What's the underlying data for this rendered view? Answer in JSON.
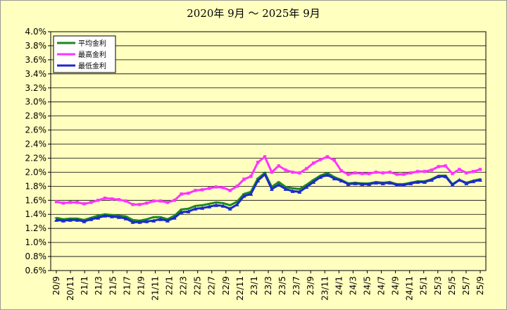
{
  "chart_data": {
    "type": "line",
    "title": "2020年 9月 ～ 2025年 9月",
    "xlabel": "",
    "ylabel": "",
    "ylim": [
      0.6,
      4.0
    ],
    "y_ticks": [
      "4.0%",
      "3.8%",
      "3.6%",
      "3.4%",
      "3.2%",
      "3.0%",
      "2.8%",
      "2.6%",
      "2.4%",
      "2.2%",
      "2.0%",
      "1.8%",
      "1.6%",
      "1.4%",
      "1.2%",
      "1.0%",
      "0.8%",
      "0.6%"
    ],
    "x_tick_labels": [
      "20/9",
      "20/11",
      "21/1",
      "21/3",
      "21/5",
      "21/7",
      "21/9",
      "21/11",
      "22/1",
      "22/3",
      "22/5",
      "22/7",
      "22/9",
      "22/11",
      "23/1",
      "23/3",
      "23/5",
      "23/7",
      "23/9",
      "23/11",
      "24/1",
      "24/3",
      "24/5",
      "24/7",
      "24/9",
      "24/11",
      "25/1",
      "25/3",
      "25/5",
      "25/7",
      "25/9"
    ],
    "grid": true,
    "legend_position": "top-left",
    "series": [
      {
        "name": "平均金利",
        "color": "#1a8a1a",
        "values": [
          1.35,
          1.33,
          1.34,
          1.34,
          1.32,
          1.35,
          1.38,
          1.4,
          1.39,
          1.38,
          1.37,
          1.32,
          1.31,
          1.33,
          1.36,
          1.36,
          1.33,
          1.38,
          1.47,
          1.48,
          1.52,
          1.53,
          1.55,
          1.57,
          1.56,
          1.53,
          1.58,
          1.69,
          1.72,
          1.91,
          1.99,
          1.79,
          1.86,
          1.79,
          1.77,
          1.76,
          1.82,
          1.89,
          1.95,
          1.99,
          1.93,
          1.89,
          1.84,
          1.85,
          1.84,
          1.84,
          1.86,
          1.85,
          1.86,
          1.83,
          1.83,
          1.85,
          1.87,
          1.87,
          1.9,
          1.95,
          1.95,
          1.83,
          1.89,
          1.85,
          1.88,
          1.9
        ]
      },
      {
        "name": "最高金利",
        "color": "#ff33ff",
        "values": [
          1.58,
          1.56,
          1.57,
          1.57,
          1.55,
          1.57,
          1.6,
          1.63,
          1.62,
          1.61,
          1.59,
          1.54,
          1.54,
          1.56,
          1.59,
          1.59,
          1.57,
          1.6,
          1.69,
          1.7,
          1.74,
          1.75,
          1.77,
          1.79,
          1.78,
          1.74,
          1.8,
          1.9,
          1.94,
          2.14,
          2.22,
          2.0,
          2.09,
          2.03,
          2.0,
          1.99,
          2.05,
          2.13,
          2.18,
          2.22,
          2.17,
          2.02,
          1.97,
          1.99,
          1.98,
          1.98,
          2.0,
          1.99,
          2.0,
          1.97,
          1.97,
          1.99,
          2.01,
          2.01,
          2.03,
          2.08,
          2.09,
          1.98,
          2.04,
          1.99,
          2.01,
          2.04
        ]
      },
      {
        "name": "最低金利",
        "color": "#1a2acc",
        "values": [
          1.32,
          1.31,
          1.32,
          1.32,
          1.3,
          1.33,
          1.35,
          1.38,
          1.37,
          1.36,
          1.34,
          1.29,
          1.29,
          1.3,
          1.31,
          1.33,
          1.31,
          1.35,
          1.43,
          1.44,
          1.48,
          1.49,
          1.51,
          1.53,
          1.52,
          1.48,
          1.54,
          1.66,
          1.69,
          1.88,
          1.97,
          1.76,
          1.82,
          1.76,
          1.73,
          1.72,
          1.79,
          1.86,
          1.93,
          1.96,
          1.91,
          1.88,
          1.83,
          1.84,
          1.83,
          1.83,
          1.85,
          1.84,
          1.85,
          1.82,
          1.82,
          1.84,
          1.86,
          1.86,
          1.89,
          1.94,
          1.94,
          1.82,
          1.89,
          1.84,
          1.87,
          1.89
        ]
      }
    ]
  }
}
